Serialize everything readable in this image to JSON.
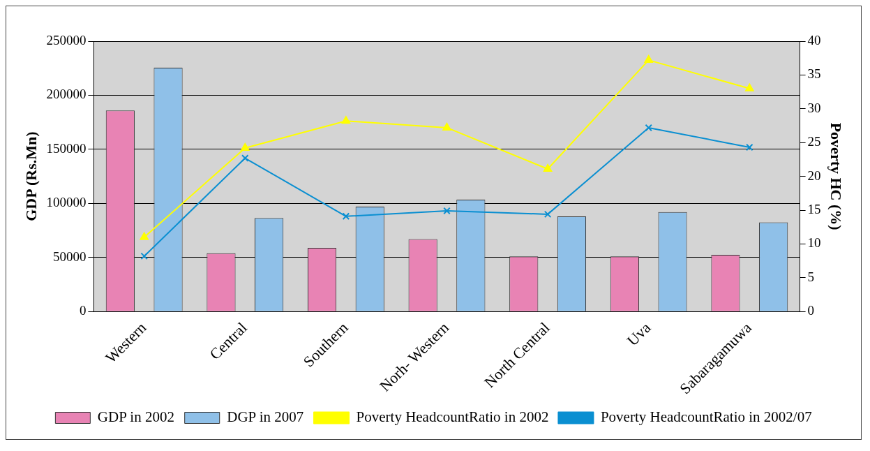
{
  "chart_data": {
    "type": "bar",
    "categories": [
      "Western",
      "Central",
      "Southern",
      "Norh- Western",
      "North Central",
      "Uva",
      "Sabaragamuwa"
    ],
    "ylabel": "GDP (Rs.Mn)",
    "y2label": "Poverty HC (%)",
    "ylim": [
      0,
      250000
    ],
    "yticks": [
      0,
      50000,
      100000,
      150000,
      200000,
      250000
    ],
    "y2lim": [
      0,
      40
    ],
    "y2ticks": [
      0,
      5,
      10,
      15,
      20,
      25,
      30,
      35,
      40
    ],
    "grid": "y",
    "legend": "bottom",
    "series": [
      {
        "name": "GDP in 2002",
        "color": "#e883b4",
        "values": [
          186000,
          54000,
          59000,
          67000,
          51000,
          51000,
          52500
        ]
      },
      {
        "name": "DGP in 2007",
        "color": "#8fc0e8",
        "values": [
          225500,
          86500,
          97000,
          103500,
          88000,
          92000,
          82500
        ]
      },
      {
        "name": "Poverty HeadcountRatio in 2002",
        "type": "line",
        "axis": "y2",
        "marker": "triangle",
        "color": "#ffff00",
        "values": [
          11.0,
          24.2,
          28.2,
          27.2,
          21.1,
          37.2,
          33.0
        ]
      },
      {
        "name": "Poverty HeadcountRatio in 2002/07",
        "type": "line",
        "axis": "y2",
        "marker": "cross",
        "color": "#0a8fd1",
        "values": [
          8.2,
          22.7,
          14.1,
          14.9,
          14.4,
          27.2,
          24.3
        ]
      }
    ]
  }
}
